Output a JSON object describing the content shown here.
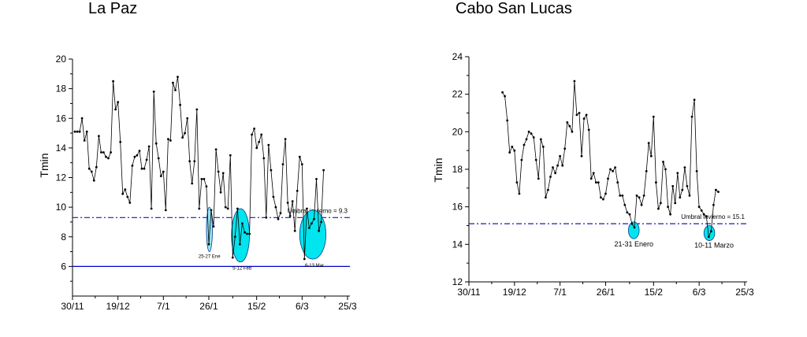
{
  "chart_data": [
    {
      "type": "line",
      "title": "La Paz",
      "ylabel": "Tmin",
      "xlabel": "",
      "xlim": [
        0,
        116
      ],
      "ylim": [
        4,
        20
      ],
      "xticks": [
        {
          "x": 0,
          "label": "30/11"
        },
        {
          "x": 19,
          "label": "19/12"
        },
        {
          "x": 38,
          "label": "7/1"
        },
        {
          "x": 57,
          "label": "26/1"
        },
        {
          "x": 77,
          "label": "15/2"
        },
        {
          "x": 96,
          "label": "6/3"
        },
        {
          "x": 115,
          "label": "25/3"
        }
      ],
      "yticks": [
        20,
        18,
        16,
        14,
        12,
        10,
        8,
        6
      ],
      "x_start": 1,
      "values": [
        15.1,
        15.1,
        15.1,
        16.0,
        14.5,
        15.1,
        12.6,
        12.4,
        11.8,
        12.7,
        14.8,
        13.7,
        13.7,
        13.4,
        13.3,
        13.7,
        18.5,
        16.6,
        17.1,
        14.4,
        10.9,
        11.2,
        10.7,
        10.3,
        12.8,
        13.4,
        13.5,
        13.8,
        12.6,
        12.6,
        13.2,
        14.1,
        9.9,
        17.8,
        14.3,
        13.3,
        12.1,
        12.4,
        9.8,
        14.6,
        14.5,
        18.4,
        17.9,
        18.8,
        16.9,
        14.7,
        15.0,
        16.0,
        13.1,
        11.6,
        13.1,
        16.6,
        9.9,
        11.9,
        11.9,
        11.4,
        7.5,
        9.8,
        8.7,
        13.9,
        12.4,
        11.0,
        12.3,
        10.0,
        9.9,
        13.5,
        6.6,
        8.0,
        9.9,
        7.5,
        8.9,
        8.3,
        8.2,
        8.2,
        14.9,
        15.3,
        14.0,
        14.4,
        14.9,
        13.3,
        9.3,
        14.2,
        12.5,
        10.7,
        10.0,
        9.2,
        9.6,
        12.9,
        14.6,
        10.3,
        9.4,
        10.4,
        8.4,
        11.1,
        13.4,
        12.9,
        6.5,
        9.9,
        8.6,
        8.9,
        9.2,
        11.9,
        8.4,
        9.0,
        12.5
      ],
      "threshold": {
        "y": 9.3,
        "label": "Umbral invierno = 9.3"
      },
      "baseline": {
        "y": 6
      },
      "ellipses": [
        {
          "label": "25-27 Ene",
          "x_range": [
            56,
            58.5
          ],
          "y_range": [
            7.0,
            10.0
          ]
        },
        {
          "label": "5-12 Feb",
          "x_range": [
            66.5,
            74
          ],
          "y_range": [
            6.3,
            9.9
          ]
        },
        {
          "label": "6-13 Mar",
          "x_range": [
            95,
            106
          ],
          "y_range": [
            6.5,
            9.8
          ]
        }
      ],
      "colors": {
        "line": "#000000",
        "threshold": "#1a1ab8",
        "baseline": "#0000cc",
        "ellipse_fill": "#00e5ee",
        "ellipse_fill_light": "#90e8f8",
        "ellipse_stroke": "#0a3a8a"
      }
    },
    {
      "type": "line",
      "title": "Cabo San Lucas",
      "ylabel": "Tmin",
      "xlabel": "",
      "xlim": [
        0,
        116
      ],
      "ylim": [
        12,
        24
      ],
      "xticks": [
        {
          "x": 0,
          "label": "30/11"
        },
        {
          "x": 19,
          "label": "19/12"
        },
        {
          "x": 38,
          "label": "7/1"
        },
        {
          "x": 57,
          "label": "26/1"
        },
        {
          "x": 77,
          "label": "15/2"
        },
        {
          "x": 96,
          "label": "6/3"
        },
        {
          "x": 115,
          "label": "25/3"
        }
      ],
      "yticks": [
        24,
        22,
        20,
        18,
        16,
        14,
        12
      ],
      "x_start": 14,
      "values": [
        22.1,
        21.9,
        20.6,
        18.9,
        19.2,
        19.0,
        17.3,
        16.7,
        18.5,
        19.3,
        19.6,
        20.0,
        19.9,
        19.7,
        18.5,
        17.5,
        19.6,
        19.2,
        16.5,
        16.9,
        17.6,
        18.1,
        17.8,
        18.2,
        18.7,
        18.2,
        19.1,
        20.5,
        20.3,
        20.0,
        22.7,
        20.9,
        21.0,
        18.7,
        20.7,
        20.9,
        20.1,
        17.5,
        17.8,
        17.3,
        17.3,
        16.5,
        16.4,
        16.7,
        17.5,
        18.0,
        17.9,
        18.1,
        17.3,
        16.6,
        16.6,
        16.1,
        15.7,
        15.6,
        15.1,
        14.9,
        16.6,
        16.5,
        16.1,
        16.6,
        17.9,
        19.4,
        18.7,
        20.8,
        17.3,
        15.9,
        16.2,
        18.4,
        18.0,
        16.0,
        15.6,
        17.1,
        16.2,
        17.8,
        16.5,
        16.9,
        18.1,
        17.1,
        16.6,
        20.8,
        21.7,
        17.9,
        16.0,
        15.8,
        15.6,
        15.5,
        14.4,
        14.7,
        16.1,
        16.9,
        16.8
      ],
      "threshold": {
        "y": 15.1,
        "label": "Umbral invierno = 15.1"
      },
      "ellipses": [
        {
          "label": "21-31 Enero",
          "x_range": [
            66.5,
            71
          ],
          "y_range": [
            14.3,
            15.2
          ]
        },
        {
          "label": "10-11 Marzo",
          "x_range": [
            98,
            102.5
          ],
          "y_range": [
            14.2,
            15.0
          ]
        }
      ],
      "colors": {
        "line": "#000000",
        "threshold": "#1a1ab8",
        "ellipse_fill": "#00e5ee",
        "ellipse_stroke": "#0a3a8a"
      }
    }
  ]
}
